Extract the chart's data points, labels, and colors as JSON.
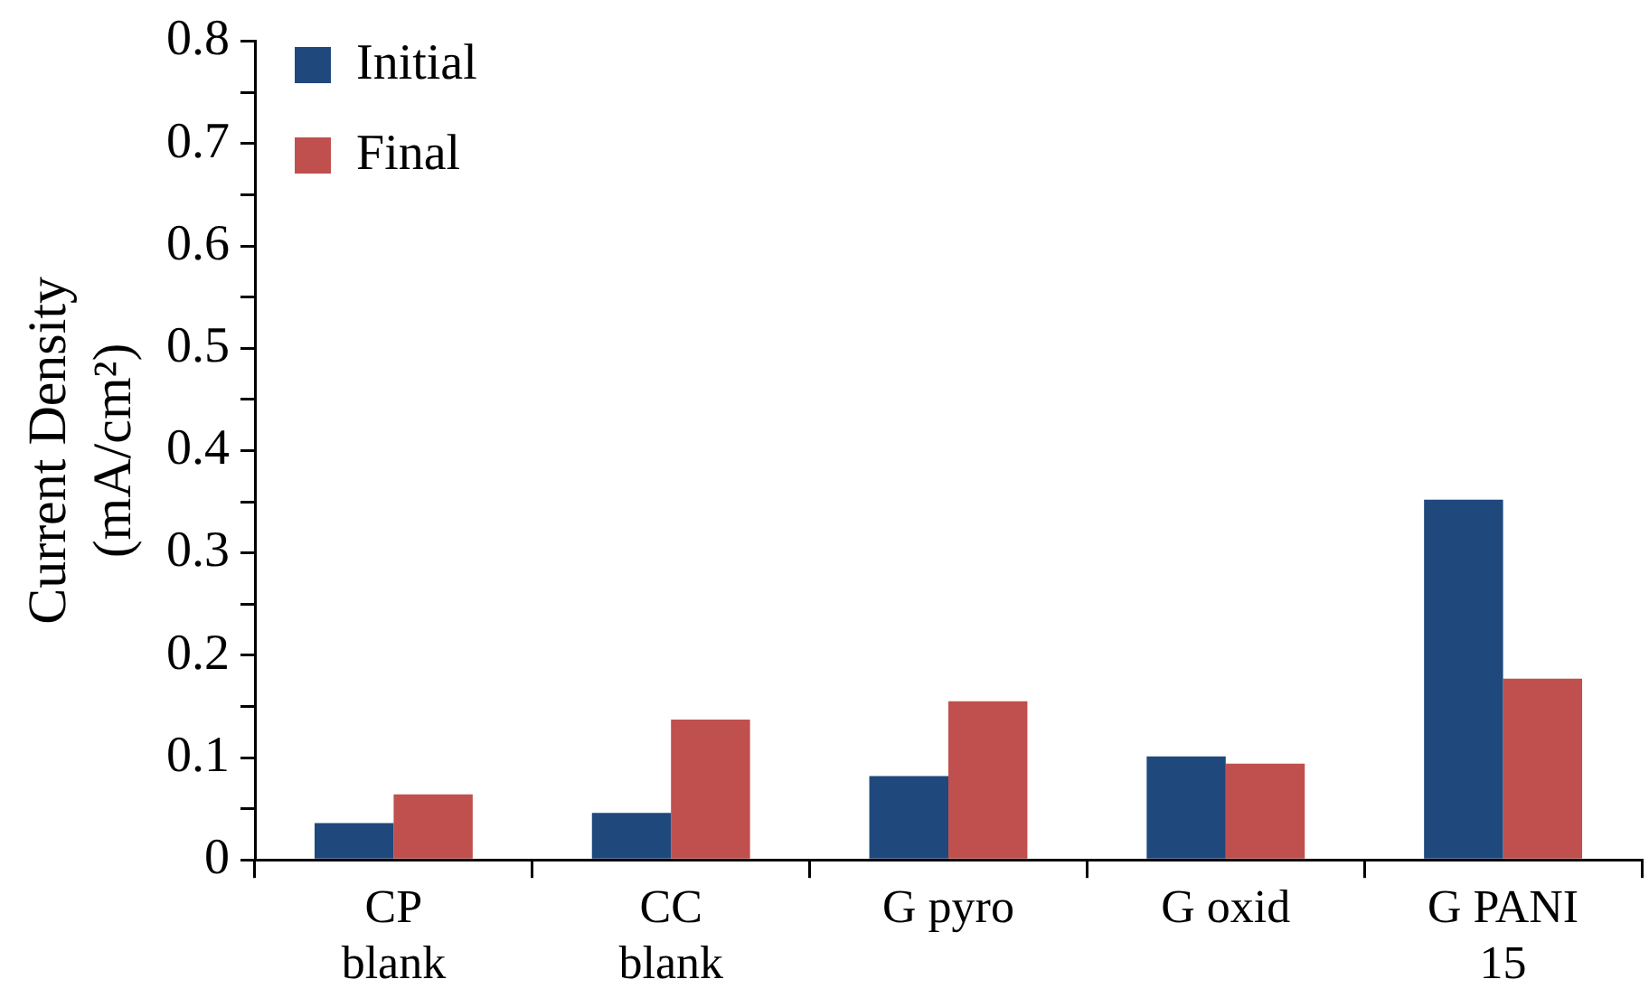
{
  "chart_data": {
    "type": "bar",
    "ylabel": "Current Density\n(mA/cm²)",
    "categories": [
      "CP\nblank",
      "CC\nblank",
      "G pyro",
      "G oxid",
      "G PANI\n15"
    ],
    "series": [
      {
        "name": "Initial",
        "color": "#1f497d",
        "values": [
          0.036,
          0.046,
          0.082,
          0.101,
          0.352
        ]
      },
      {
        "name": "Final",
        "color": "#c0504d",
        "values": [
          0.064,
          0.137,
          0.155,
          0.094,
          0.177
        ]
      }
    ],
    "ylim": [
      0,
      0.8
    ],
    "yticks": [
      0,
      {
        "value": 0.05,
        "label": null
      },
      0.1,
      {
        "value": 0.15,
        "label": null
      },
      0.2,
      {
        "value": 0.25,
        "label": null
      },
      0.3,
      {
        "value": 0.35,
        "label": null
      },
      0.4,
      {
        "value": 0.45,
        "label": null
      },
      0.5,
      {
        "value": 0.55,
        "label": null
      },
      0.6,
      {
        "value": 0.65,
        "label": null
      },
      0.7,
      {
        "value": 0.75,
        "label": null
      },
      0.8
    ],
    "grid": false,
    "legend": "top left"
  }
}
